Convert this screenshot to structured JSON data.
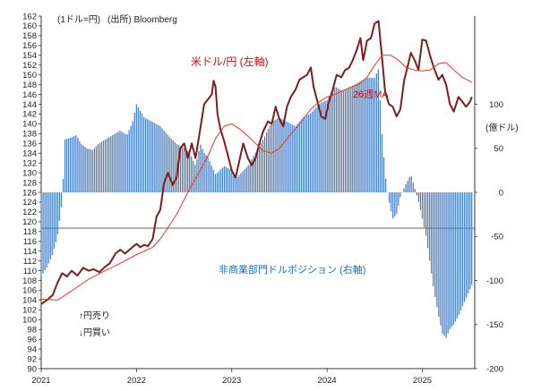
{
  "colors": {
    "usdjpy": "#7a1f1f",
    "ma26": "#e8342a",
    "bars": "#4a7fc1",
    "usdjpy_label": "#c0121b",
    "ma_label": "#c0121b",
    "position_label": "#1f6fc0",
    "axis": "#333333"
  },
  "chart_data": {
    "type": "bar+line",
    "unit_note": "(1ドル=円)",
    "source": "(出所) Bloomberg",
    "left_axis": {
      "ylim": [
        90,
        162
      ],
      "ticks": [
        162,
        160,
        158,
        156,
        154,
        152,
        150,
        148,
        146,
        144,
        142,
        140,
        138,
        136,
        134,
        132,
        130,
        128,
        126,
        124,
        122,
        120,
        118,
        116,
        114,
        112,
        110,
        108,
        106,
        104,
        102,
        100,
        98,
        96,
        94,
        92,
        90
      ]
    },
    "right_axis": {
      "unit": "(億ドル)",
      "ylim": [
        -200,
        200
      ],
      "ticks": [
        100,
        50,
        0,
        -50,
        -100,
        -150,
        -200
      ]
    },
    "x_axis": {
      "xlim": [
        "2021-01",
        "2025-07"
      ],
      "ticks": [
        {
          "label": "2021",
          "t": 2021.0
        },
        {
          "label": "2022",
          "t": 2022.0
        },
        {
          "label": "2023",
          "t": 2023.0
        },
        {
          "label": "2024",
          "t": 2024.0
        },
        {
          "label": "2025",
          "t": 2025.0
        }
      ]
    },
    "annotations": {
      "usdjpy": "米ドル/円 (左軸)",
      "ma": "26週MA",
      "position": "非商業部門ドルポジション (右軸)",
      "up": "↑円売り",
      "down": "↓円買い"
    },
    "series": [
      {
        "name": "米ドル/円 (左軸)",
        "axis": "left",
        "type": "line",
        "points": [
          [
            2021.0,
            103.2
          ],
          [
            2021.06,
            104.0
          ],
          [
            2021.12,
            105.0
          ],
          [
            2021.17,
            107.5
          ],
          [
            2021.22,
            109.5
          ],
          [
            2021.27,
            108.8
          ],
          [
            2021.32,
            110.0
          ],
          [
            2021.38,
            109.0
          ],
          [
            2021.44,
            110.6
          ],
          [
            2021.5,
            110.0
          ],
          [
            2021.55,
            110.3
          ],
          [
            2021.61,
            109.7
          ],
          [
            2021.67,
            110.8
          ],
          [
            2021.72,
            111.5
          ],
          [
            2021.78,
            113.5
          ],
          [
            2021.83,
            114.3
          ],
          [
            2021.88,
            113.5
          ],
          [
            2021.94,
            114.5
          ],
          [
            2022.0,
            115.5
          ],
          [
            2022.04,
            114.8
          ],
          [
            2022.08,
            115.3
          ],
          [
            2022.12,
            115.0
          ],
          [
            2022.17,
            116.5
          ],
          [
            2022.21,
            121.0
          ],
          [
            2022.25,
            122.5
          ],
          [
            2022.29,
            128.0
          ],
          [
            2022.33,
            130.0
          ],
          [
            2022.38,
            127.5
          ],
          [
            2022.42,
            129.0
          ],
          [
            2022.46,
            135.0
          ],
          [
            2022.5,
            136.0
          ],
          [
            2022.54,
            133.0
          ],
          [
            2022.58,
            136.0
          ],
          [
            2022.62,
            133.0
          ],
          [
            2022.67,
            139.0
          ],
          [
            2022.71,
            144.0
          ],
          [
            2022.75,
            145.0
          ],
          [
            2022.79,
            146.0
          ],
          [
            2022.81,
            148.8
          ],
          [
            2022.83,
            147.5
          ],
          [
            2022.85,
            142.0
          ],
          [
            2022.88,
            139.0
          ],
          [
            2022.92,
            136.5
          ],
          [
            2022.96,
            133.5
          ],
          [
            2023.0,
            130.5
          ],
          [
            2023.04,
            129.0
          ],
          [
            2023.08,
            132.5
          ],
          [
            2023.12,
            136.0
          ],
          [
            2023.17,
            133.0
          ],
          [
            2023.21,
            131.5
          ],
          [
            2023.25,
            133.0
          ],
          [
            2023.29,
            136.0
          ],
          [
            2023.33,
            138.5
          ],
          [
            2023.38,
            140.5
          ],
          [
            2023.42,
            140.0
          ],
          [
            2023.46,
            143.5
          ],
          [
            2023.5,
            141.0
          ],
          [
            2023.54,
            139.5
          ],
          [
            2023.58,
            143.5
          ],
          [
            2023.62,
            145.5
          ],
          [
            2023.67,
            147.0
          ],
          [
            2023.71,
            149.0
          ],
          [
            2023.75,
            149.5
          ],
          [
            2023.79,
            150.0
          ],
          [
            2023.83,
            151.5
          ],
          [
            2023.86,
            147.5
          ],
          [
            2023.9,
            144.5
          ],
          [
            2023.94,
            141.5
          ],
          [
            2023.98,
            141.0
          ],
          [
            2024.02,
            144.5
          ],
          [
            2024.06,
            147.0
          ],
          [
            2024.1,
            150.0
          ],
          [
            2024.15,
            149.5
          ],
          [
            2024.19,
            151.0
          ],
          [
            2024.23,
            151.4
          ],
          [
            2024.27,
            153.0
          ],
          [
            2024.31,
            155.0
          ],
          [
            2024.35,
            157.5
          ],
          [
            2024.38,
            153.0
          ],
          [
            2024.42,
            157.0
          ],
          [
            2024.46,
            157.5
          ],
          [
            2024.5,
            160.5
          ],
          [
            2024.54,
            161.0
          ],
          [
            2024.58,
            153.0
          ],
          [
            2024.61,
            146.5
          ],
          [
            2024.65,
            144.0
          ],
          [
            2024.69,
            143.5
          ],
          [
            2024.73,
            141.5
          ],
          [
            2024.77,
            143.0
          ],
          [
            2024.81,
            149.0
          ],
          [
            2024.85,
            152.0
          ],
          [
            2024.88,
            154.5
          ],
          [
            2024.92,
            153.0
          ],
          [
            2024.96,
            151.0
          ],
          [
            2025.0,
            157.2
          ],
          [
            2025.04,
            157.0
          ],
          [
            2025.08,
            154.0
          ],
          [
            2025.12,
            151.5
          ],
          [
            2025.17,
            149.0
          ],
          [
            2025.21,
            150.0
          ],
          [
            2025.25,
            148.0
          ],
          [
            2025.29,
            144.0
          ],
          [
            2025.33,
            142.5
          ],
          [
            2025.38,
            145.5
          ],
          [
            2025.42,
            144.5
          ],
          [
            2025.46,
            143.5
          ],
          [
            2025.5,
            144.5
          ],
          [
            2025.52,
            145.5
          ]
        ]
      },
      {
        "name": "26週MA",
        "axis": "left",
        "type": "line",
        "points": [
          [
            2021.0,
            104.2
          ],
          [
            2021.17,
            104.0
          ],
          [
            2021.33,
            106.0
          ],
          [
            2021.5,
            108.3
          ],
          [
            2021.67,
            110.0
          ],
          [
            2021.83,
            111.5
          ],
          [
            2022.0,
            113.3
          ],
          [
            2022.17,
            114.8
          ],
          [
            2022.25,
            116.5
          ],
          [
            2022.33,
            118.8
          ],
          [
            2022.42,
            121.5
          ],
          [
            2022.5,
            124.5
          ],
          [
            2022.58,
            127.5
          ],
          [
            2022.67,
            130.5
          ],
          [
            2022.75,
            133.5
          ],
          [
            2022.83,
            137.0
          ],
          [
            2022.92,
            139.5
          ],
          [
            2023.0,
            140.0
          ],
          [
            2023.08,
            139.0
          ],
          [
            2023.17,
            137.5
          ],
          [
            2023.25,
            136.0
          ],
          [
            2023.33,
            134.5
          ],
          [
            2023.42,
            134.0
          ],
          [
            2023.5,
            135.0
          ],
          [
            2023.58,
            137.0
          ],
          [
            2023.67,
            139.0
          ],
          [
            2023.75,
            141.0
          ],
          [
            2023.83,
            143.0
          ],
          [
            2023.92,
            144.5
          ],
          [
            2024.0,
            145.5
          ],
          [
            2024.08,
            146.0
          ],
          [
            2024.17,
            146.8
          ],
          [
            2024.25,
            147.5
          ],
          [
            2024.33,
            148.0
          ],
          [
            2024.42,
            149.5
          ],
          [
            2024.5,
            152.0
          ],
          [
            2024.58,
            154.0
          ],
          [
            2024.67,
            154.0
          ],
          [
            2024.75,
            153.0
          ],
          [
            2024.83,
            151.5
          ],
          [
            2024.92,
            151.0
          ],
          [
            2025.0,
            150.8
          ],
          [
            2025.08,
            151.0
          ],
          [
            2025.17,
            152.3
          ],
          [
            2025.25,
            152.5
          ],
          [
            2025.33,
            151.0
          ],
          [
            2025.42,
            149.5
          ],
          [
            2025.52,
            148.5
          ]
        ]
      },
      {
        "name": "非商業部門ドルポジション (右軸)",
        "axis": "right",
        "type": "bar",
        "points": [
          [
            2021.0,
            -95
          ],
          [
            2021.06,
            -85
          ],
          [
            2021.12,
            -70
          ],
          [
            2021.17,
            -50
          ],
          [
            2021.22,
            -10
          ],
          [
            2021.25,
            60
          ],
          [
            2021.31,
            62
          ],
          [
            2021.37,
            65
          ],
          [
            2021.42,
            55
          ],
          [
            2021.48,
            50
          ],
          [
            2021.54,
            48
          ],
          [
            2021.6,
            55
          ],
          [
            2021.67,
            60
          ],
          [
            2021.75,
            65
          ],
          [
            2021.83,
            70
          ],
          [
            2021.9,
            65
          ],
          [
            2021.96,
            80
          ],
          [
            2022.0,
            100
          ],
          [
            2022.08,
            85
          ],
          [
            2022.17,
            80
          ],
          [
            2022.25,
            75
          ],
          [
            2022.33,
            65
          ],
          [
            2022.42,
            55
          ],
          [
            2022.5,
            50
          ],
          [
            2022.56,
            45
          ],
          [
            2022.62,
            30
          ],
          [
            2022.67,
            55
          ],
          [
            2022.71,
            45
          ],
          [
            2022.75,
            40
          ],
          [
            2022.83,
            20
          ],
          [
            2022.92,
            30
          ],
          [
            2023.0,
            25
          ],
          [
            2023.04,
            15
          ],
          [
            2023.08,
            20
          ],
          [
            2023.17,
            30
          ],
          [
            2023.25,
            45
          ],
          [
            2023.33,
            60
          ],
          [
            2023.42,
            80
          ],
          [
            2023.5,
            85
          ],
          [
            2023.58,
            80
          ],
          [
            2023.67,
            75
          ],
          [
            2023.75,
            85
          ],
          [
            2023.83,
            90
          ],
          [
            2023.92,
            100
          ],
          [
            2024.0,
            105
          ],
          [
            2024.08,
            120
          ],
          [
            2024.17,
            115
          ],
          [
            2024.25,
            120
          ],
          [
            2024.33,
            125
          ],
          [
            2024.42,
            130
          ],
          [
            2024.5,
            130
          ],
          [
            2024.54,
            140
          ],
          [
            2024.58,
            60
          ],
          [
            2024.62,
            10
          ],
          [
            2024.65,
            -10
          ],
          [
            2024.69,
            -30
          ],
          [
            2024.73,
            -25
          ],
          [
            2024.77,
            -5
          ],
          [
            2024.83,
            10
          ],
          [
            2024.88,
            20
          ],
          [
            2024.92,
            5
          ],
          [
            2024.96,
            -10
          ],
          [
            2025.0,
            -30
          ],
          [
            2025.04,
            -50
          ],
          [
            2025.08,
            -80
          ],
          [
            2025.12,
            -110
          ],
          [
            2025.17,
            -140
          ],
          [
            2025.21,
            -160
          ],
          [
            2025.25,
            -165
          ],
          [
            2025.29,
            -155
          ],
          [
            2025.33,
            -150
          ],
          [
            2025.38,
            -140
          ],
          [
            2025.42,
            -130
          ],
          [
            2025.46,
            -120
          ],
          [
            2025.52,
            -105
          ]
        ]
      }
    ]
  }
}
